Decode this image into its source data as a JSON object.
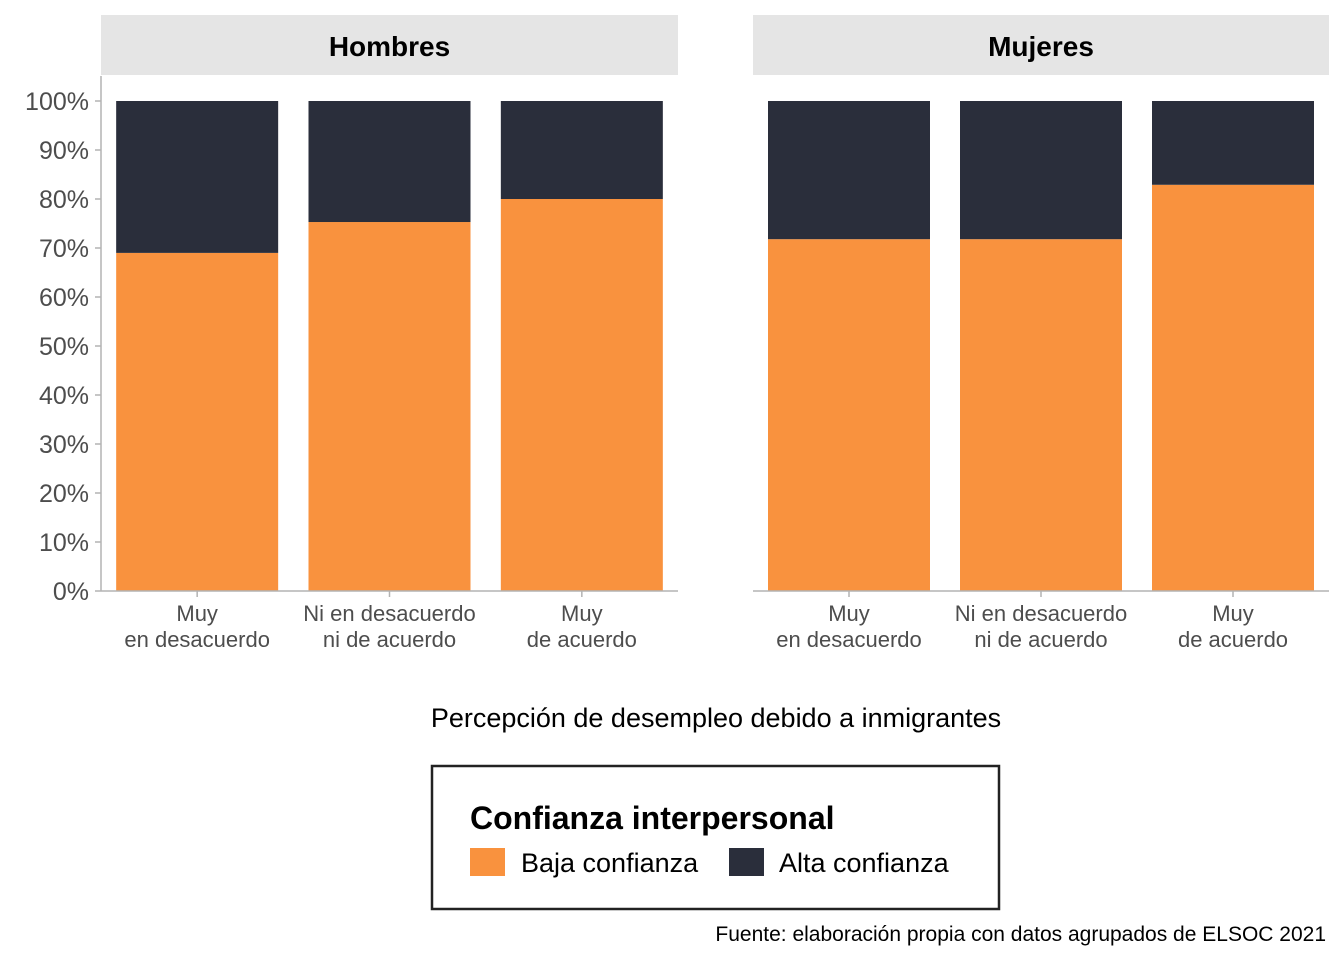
{
  "chart_data": {
    "type": "bar",
    "stacked": true,
    "percent": true,
    "xlabel": "Percepción de desempleo debido a inmigrantes",
    "ylabel": "",
    "ylim": [
      0,
      100
    ],
    "yticks": [
      "0%",
      "10%",
      "20%",
      "30%",
      "40%",
      "50%",
      "60%",
      "70%",
      "80%",
      "90%",
      "100%"
    ],
    "categories": [
      [
        "Muy",
        "en desacuerdo"
      ],
      [
        "Ni en desacuerdo",
        "ni de acuerdo"
      ],
      [
        "Muy",
        "de acuerdo"
      ]
    ],
    "panels": [
      {
        "title": "Hombres",
        "series": [
          {
            "name": "Baja confianza",
            "values": [
              69,
              75.3,
              80
            ]
          },
          {
            "name": "Alta confianza",
            "values": [
              31,
              24.7,
              20
            ]
          }
        ]
      },
      {
        "title": "Mujeres",
        "series": [
          {
            "name": "Baja confianza",
            "values": [
              71.8,
              71.8,
              82.9
            ]
          },
          {
            "name": "Alta confianza",
            "values": [
              28.2,
              28.2,
              17.1
            ]
          }
        ]
      }
    ],
    "legend": {
      "title": "Confianza interpersonal",
      "position": "bottom",
      "items": [
        "Baja confianza",
        "Alta confianza"
      ]
    },
    "colors": {
      "Baja confianza": "#f9923e",
      "Alta confianza": "#2a2e3b"
    },
    "caption": "Fuente: elaboración propia con datos agrupados de ELSOC 2021"
  }
}
